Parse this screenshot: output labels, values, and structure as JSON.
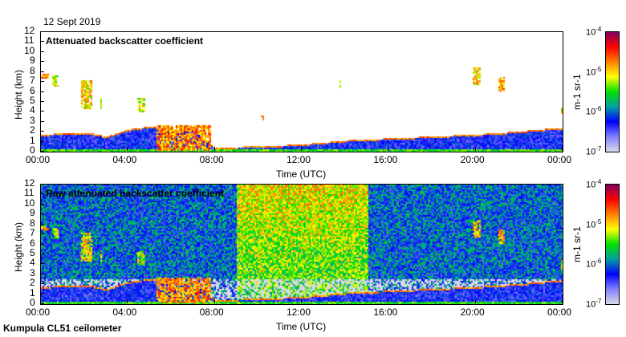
{
  "date": "12 Sept 2019",
  "footer": "Kumpula CL51 ceilometer",
  "colors": {
    "scale": [
      "#d8d8e8",
      "#8080ff",
      "#0000ff",
      "#00a0a0",
      "#00e000",
      "#ffff00",
      "#ff8000",
      "#ff0000",
      "#800060"
    ]
  },
  "chart_data": [
    {
      "type": "heatmap",
      "title": "Attenuated backscatter coefficient",
      "xlabel": "Time (UTC)",
      "ylabel": "Height (km)",
      "xlim": [
        0,
        24
      ],
      "ylim": [
        0,
        12
      ],
      "x_ticks": [
        "00:00",
        "04:00",
        "08:00",
        "12:00",
        "16:00",
        "20:00",
        "00:00"
      ],
      "y_ticks": [
        "0",
        "1",
        "2",
        "3",
        "4",
        "5",
        "6",
        "7",
        "8",
        "9",
        "10",
        "11",
        "12"
      ],
      "colorbar": {
        "label": "m-1 sr-1",
        "unit_base": "m",
        "unit_exp": "-1",
        "unit_base2": "sr",
        "unit_exp2": "-1",
        "ticks": [
          {
            "base": "10",
            "exp": "-4"
          },
          {
            "base": "10",
            "exp": "-5"
          },
          {
            "base": "10",
            "exp": "-6"
          },
          {
            "base": "10",
            "exp": "-7"
          }
        ],
        "log_range": [
          -7,
          -4
        ]
      },
      "boundary_layer_top_km": [
        [
          0,
          1.8
        ],
        [
          2,
          2.0
        ],
        [
          3,
          1.6
        ],
        [
          4,
          2.3
        ],
        [
          5,
          2.6
        ],
        [
          6,
          2.2
        ],
        [
          7,
          2.4
        ],
        [
          8,
          0.5
        ],
        [
          10,
          0.6
        ],
        [
          12,
          0.8
        ],
        [
          14,
          1.2
        ],
        [
          16,
          1.4
        ],
        [
          18,
          1.6
        ],
        [
          20,
          1.8
        ],
        [
          22,
          2.1
        ],
        [
          24,
          2.5
        ]
      ],
      "clouds": [
        {
          "t0": 0.0,
          "t1": 0.3,
          "base": 7.4,
          "top": 7.9,
          "log": -4.8
        },
        {
          "t0": 0.5,
          "t1": 0.8,
          "base": 6.6,
          "top": 7.8,
          "log": -5.2
        },
        {
          "t0": 1.8,
          "t1": 2.3,
          "base": 4.4,
          "top": 7.2,
          "log": -5.0
        },
        {
          "t0": 2.7,
          "t1": 2.8,
          "base": 4.3,
          "top": 5.5,
          "log": -5.0
        },
        {
          "t0": 4.4,
          "t1": 4.8,
          "base": 4.0,
          "top": 5.5,
          "log": -5.2
        },
        {
          "t0": 5.3,
          "t1": 7.8,
          "base": 0.2,
          "top": 2.8,
          "log": -4.8
        },
        {
          "t0": 10.1,
          "t1": 10.2,
          "base": 3.2,
          "top": 3.7,
          "log": -5.0
        },
        {
          "t0": 13.7,
          "t1": 13.8,
          "base": 6.5,
          "top": 7.2,
          "log": -5.0
        },
        {
          "t0": 19.8,
          "t1": 20.2,
          "base": 6.8,
          "top": 8.5,
          "log": -5.0
        },
        {
          "t0": 21.0,
          "t1": 21.3,
          "base": 6.2,
          "top": 7.5,
          "log": -4.9
        },
        {
          "t0": 23.9,
          "t1": 24.0,
          "base": 3.6,
          "top": 4.5,
          "log": -5.2
        }
      ]
    },
    {
      "type": "heatmap",
      "title": "Raw attenuated backscatter coefficient",
      "xlabel": "Time (UTC)",
      "ylabel": "Height (km)",
      "xlim": [
        0,
        24
      ],
      "ylim": [
        0,
        12
      ],
      "x_ticks": [
        "00:00",
        "04:00",
        "08:00",
        "12:00",
        "16:00",
        "20:00",
        "00:00"
      ],
      "y_ticks": [
        "0",
        "1",
        "2",
        "3",
        "4",
        "5",
        "6",
        "7",
        "8",
        "9",
        "10",
        "11",
        "12"
      ],
      "colorbar": {
        "label": "m-1 sr-1",
        "ticks": [
          {
            "base": "10",
            "exp": "-4"
          },
          {
            "base": "10",
            "exp": "-5"
          },
          {
            "base": "10",
            "exp": "-6"
          },
          {
            "base": "10",
            "exp": "-7"
          }
        ],
        "log_range": [
          -7,
          -4
        ]
      }
    }
  ]
}
